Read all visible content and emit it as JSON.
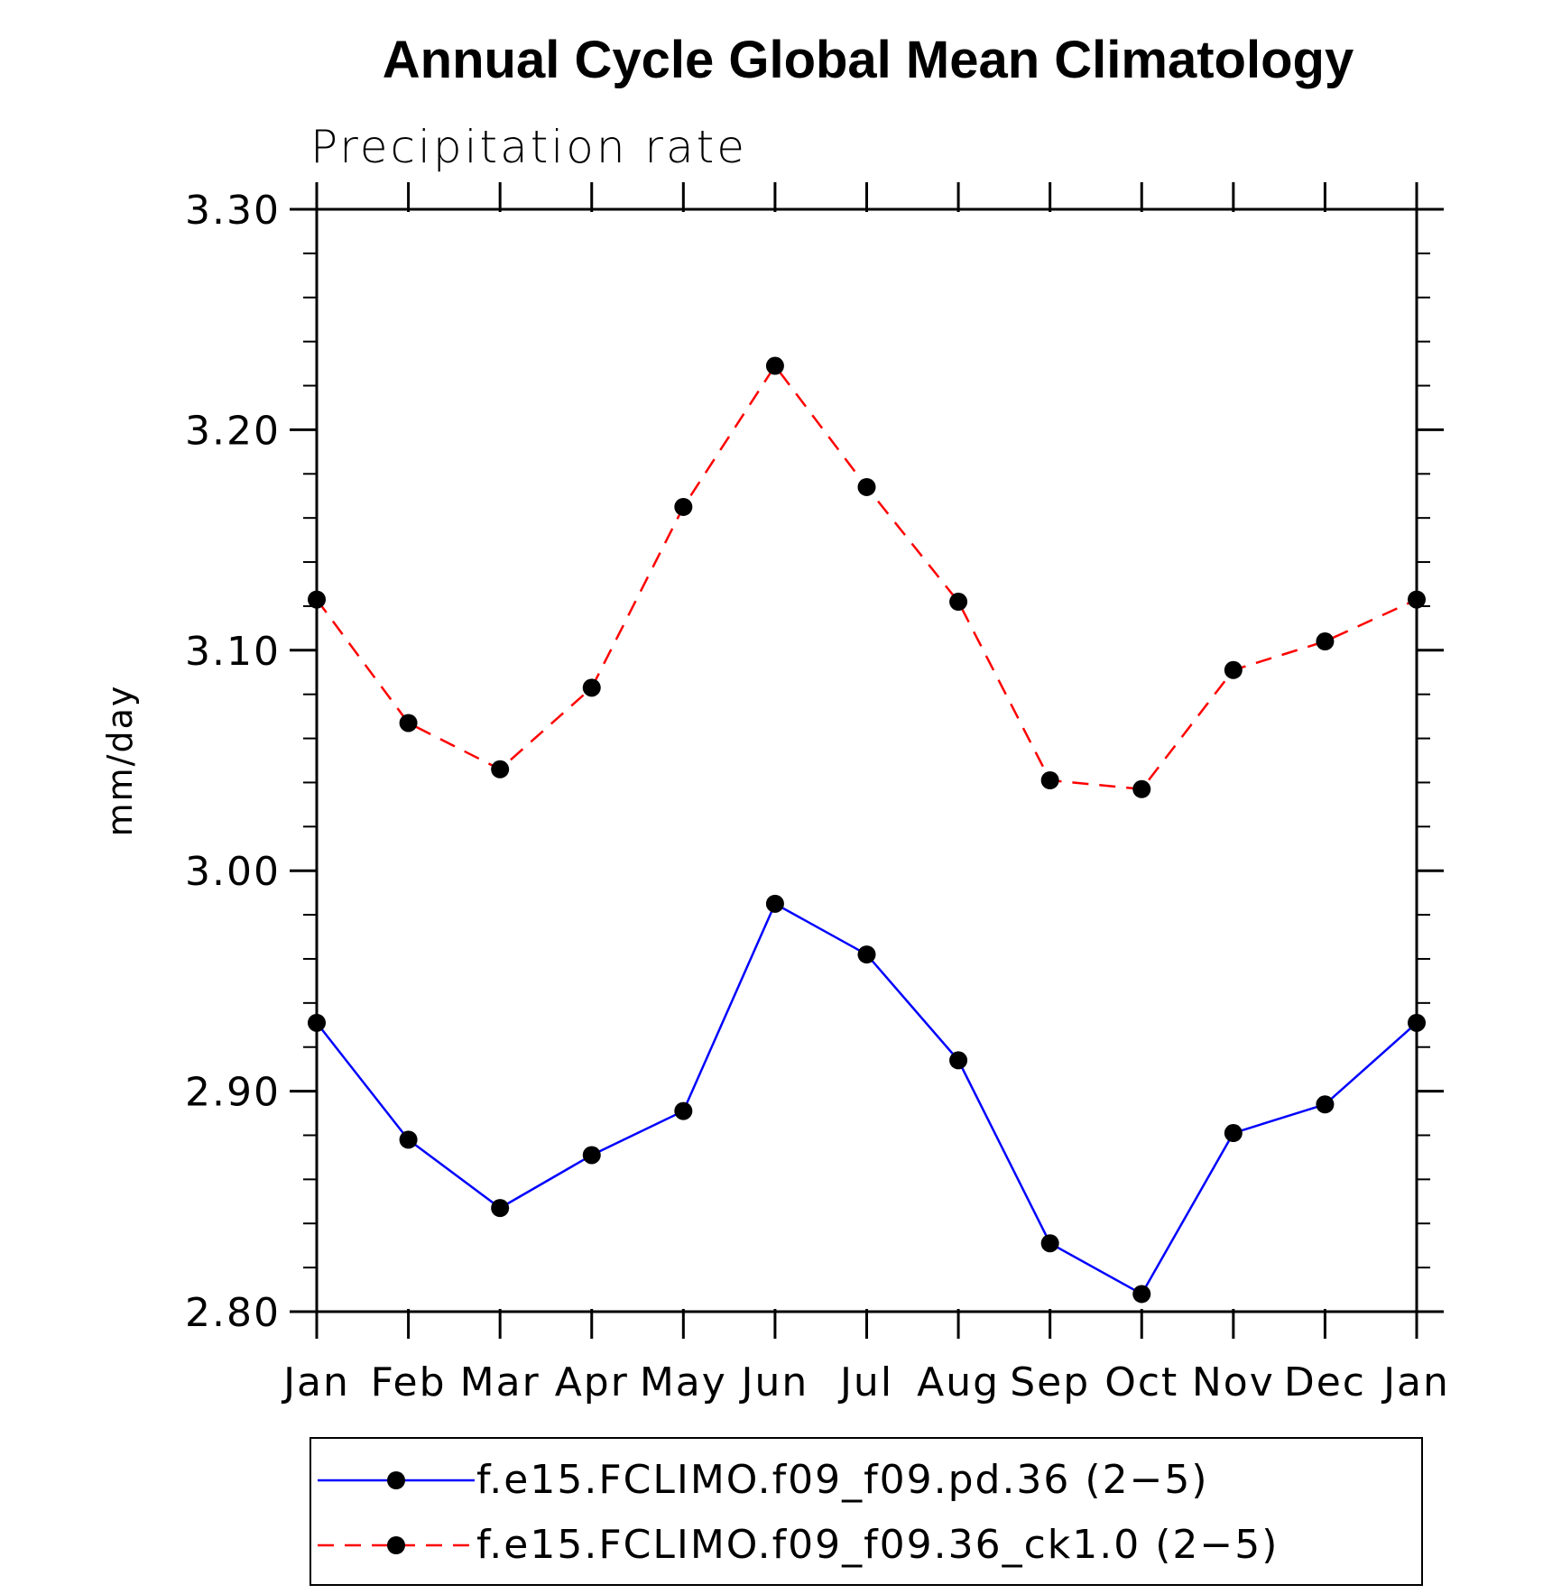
{
  "chart_data": {
    "type": "line",
    "title": "Annual Cycle Global Mean Climatology",
    "subtitle": "Precipitation rate",
    "xlabel": "",
    "ylabel": "mm/day",
    "categories": [
      "Jan",
      "Feb",
      "Mar",
      "Apr",
      "May",
      "Jun",
      "Jul",
      "Aug",
      "Sep",
      "Oct",
      "Nov",
      "Dec",
      "Jan"
    ],
    "ylim": [
      2.8,
      3.3
    ],
    "yticks": [
      "2.80",
      "2.90",
      "3.00",
      "3.10",
      "3.20",
      "3.30"
    ],
    "grid": false,
    "legend_position": "bottom",
    "series": [
      {
        "name": "f.e15.FCLIMO.f09_f09.pd.36 (2−5)",
        "color": "#0000ff",
        "dash": "solid",
        "values": [
          2.931,
          2.878,
          2.847,
          2.871,
          2.891,
          2.985,
          2.962,
          2.914,
          2.831,
          2.808,
          2.881,
          2.894,
          2.931
        ]
      },
      {
        "name": "f.e15.FCLIMO.f09_f09.36_ck1.0 (2−5)",
        "color": "#ff0000",
        "dash": "dashed",
        "values": [
          3.123,
          3.067,
          3.046,
          3.083,
          3.165,
          3.229,
          3.174,
          3.122,
          3.041,
          3.037,
          3.091,
          3.104,
          3.123
        ]
      }
    ]
  }
}
